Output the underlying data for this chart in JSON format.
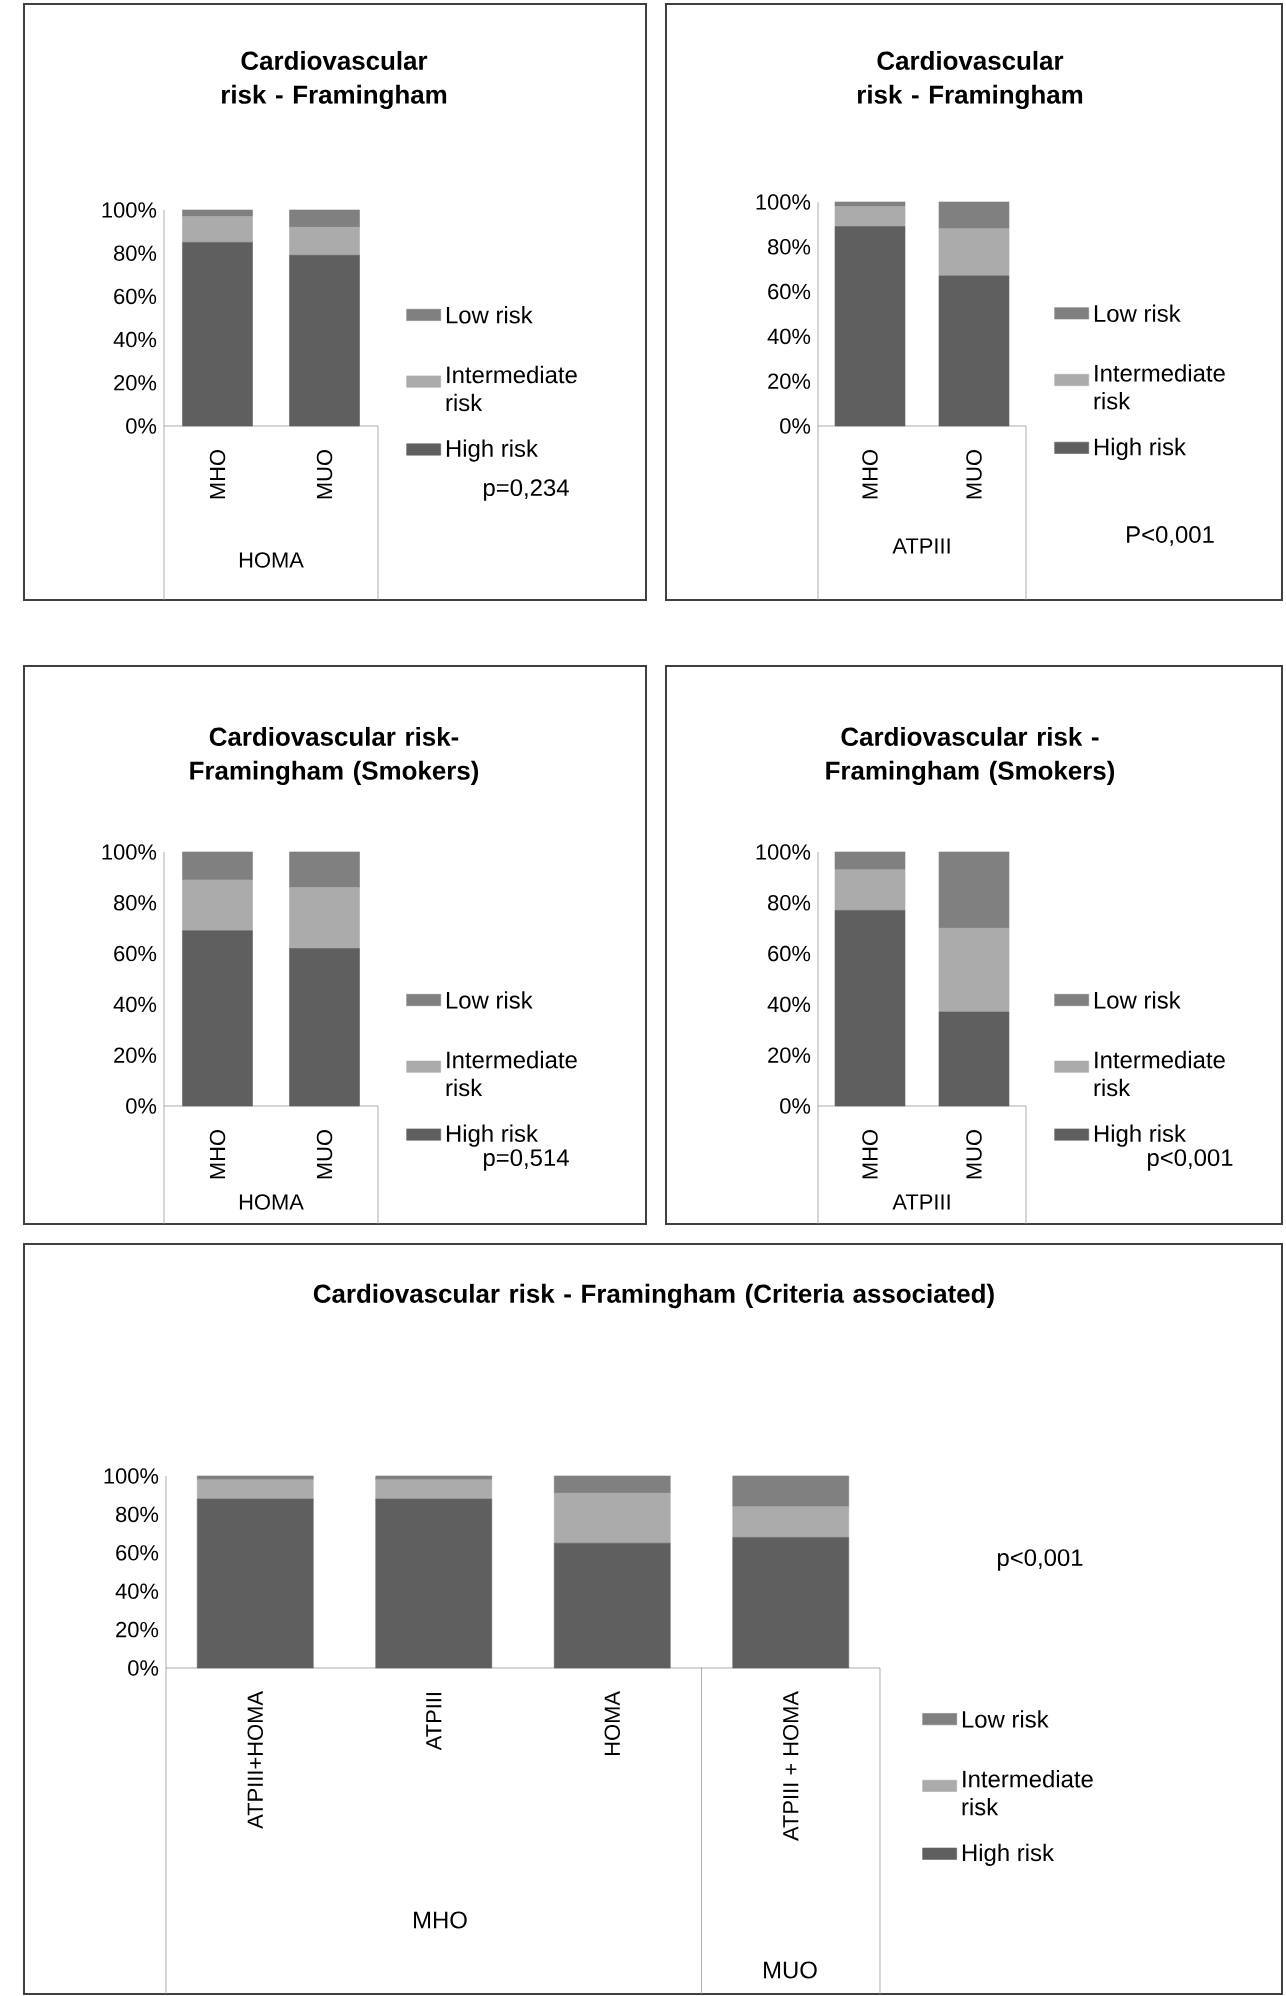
{
  "chart_data": [
    {
      "type": "bar",
      "stacked": true,
      "title": "Cardiovascular risk - Framingham",
      "categories": [
        "MHO",
        "MUO"
      ],
      "xlabel": "HOMA",
      "ylim": [
        0,
        100
      ],
      "yticks": [
        {
          "value": 0,
          "label": "0%"
        },
        {
          "value": 20,
          "label": "20%"
        },
        {
          "value": 40,
          "label": "40%"
        },
        {
          "value": 60,
          "label": "60%"
        },
        {
          "value": 80,
          "label": "80%"
        },
        {
          "value": 100,
          "label": "100%"
        }
      ],
      "legend": "right",
      "annotations": [
        "p=0,234"
      ],
      "series": [
        {
          "name": "High risk",
          "color": "#5f5f5f",
          "values": [
            85,
            79
          ]
        },
        {
          "name": "Intermediate risk",
          "color": "#ababab",
          "values": [
            12,
            13
          ]
        },
        {
          "name": "Low risk",
          "color": "#808080",
          "values": [
            3,
            8
          ]
        }
      ]
    },
    {
      "type": "bar",
      "stacked": true,
      "title": "Cardiovascular risk - Framingham",
      "categories": [
        "MHO",
        "MUO"
      ],
      "xlabel": "ATPIII",
      "ylim": [
        0,
        100
      ],
      "yticks": [
        {
          "value": 0,
          "label": "0%"
        },
        {
          "value": 20,
          "label": "20%"
        },
        {
          "value": 40,
          "label": "40%"
        },
        {
          "value": 60,
          "label": "60%"
        },
        {
          "value": 80,
          "label": "80%"
        },
        {
          "value": 100,
          "label": "100%"
        }
      ],
      "legend": "right",
      "annotations": [
        "P<0,001"
      ],
      "series": [
        {
          "name": "High risk",
          "color": "#5f5f5f",
          "values": [
            89,
            67
          ]
        },
        {
          "name": "Intermediate risk",
          "color": "#ababab",
          "values": [
            9,
            21
          ]
        },
        {
          "name": "Low risk",
          "color": "#808080",
          "values": [
            2,
            12
          ]
        }
      ]
    },
    {
      "type": "bar",
      "stacked": true,
      "title": "Cardiovascular risk- Framingham (Smokers)",
      "categories": [
        "MHO",
        "MUO"
      ],
      "xlabel": "HOMA",
      "ylim": [
        0,
        100
      ],
      "yticks": [
        {
          "value": 0,
          "label": "0%"
        },
        {
          "value": 20,
          "label": "20%"
        },
        {
          "value": 40,
          "label": "40%"
        },
        {
          "value": 60,
          "label": "60%"
        },
        {
          "value": 80,
          "label": "80%"
        },
        {
          "value": 100,
          "label": "100%"
        }
      ],
      "legend": "right",
      "annotations": [
        "p=0,514"
      ],
      "series": [
        {
          "name": "High risk",
          "color": "#5f5f5f",
          "values": [
            69,
            62
          ]
        },
        {
          "name": "Intermediate risk",
          "color": "#ababab",
          "values": [
            20,
            24
          ]
        },
        {
          "name": "Low risk",
          "color": "#808080",
          "values": [
            11,
            14
          ]
        }
      ]
    },
    {
      "type": "bar",
      "stacked": true,
      "title": "Cardiovascular risk - Framingham (Smokers)",
      "categories": [
        "MHO",
        "MUO"
      ],
      "xlabel": "ATPIII",
      "ylim": [
        0,
        100
      ],
      "yticks": [
        {
          "value": 0,
          "label": "0%"
        },
        {
          "value": 20,
          "label": "20%"
        },
        {
          "value": 40,
          "label": "40%"
        },
        {
          "value": 60,
          "label": "60%"
        },
        {
          "value": 80,
          "label": "80%"
        },
        {
          "value": 100,
          "label": "100%"
        }
      ],
      "legend": "right",
      "annotations": [
        "p<0,001"
      ],
      "series": [
        {
          "name": "High risk",
          "color": "#5f5f5f",
          "values": [
            77,
            37
          ]
        },
        {
          "name": "Intermediate risk",
          "color": "#ababab",
          "values": [
            16,
            33
          ]
        },
        {
          "name": "Low risk",
          "color": "#808080",
          "values": [
            7,
            30
          ]
        }
      ]
    },
    {
      "type": "bar",
      "stacked": true,
      "title": "Cardiovascular risk - Framingham (Criteria associated)",
      "categories": [
        "ATPIII+HOMA",
        "ATPIII",
        "HOMA",
        "ATPIII + HOMA"
      ],
      "ylim": [
        0,
        100
      ],
      "yticks": [
        {
          "value": 0,
          "label": "0%"
        },
        {
          "value": 20,
          "label": "20%"
        },
        {
          "value": 40,
          "label": "40%"
        },
        {
          "value": 60,
          "label": "60%"
        },
        {
          "value": 80,
          "label": "80%"
        },
        {
          "value": 100,
          "label": "100%"
        }
      ],
      "legend": "right",
      "annotations": [
        "p<0,001",
        "MHO",
        "MUO"
      ],
      "series": [
        {
          "name": "High risk",
          "color": "#5f5f5f",
          "values": [
            88,
            88,
            65,
            68
          ]
        },
        {
          "name": "Intermediate risk",
          "color": "#ababab",
          "values": [
            10,
            10,
            26,
            16
          ]
        },
        {
          "name": "Low risk",
          "color": "#808080",
          "values": [
            2,
            2,
            9,
            16
          ]
        }
      ]
    }
  ]
}
